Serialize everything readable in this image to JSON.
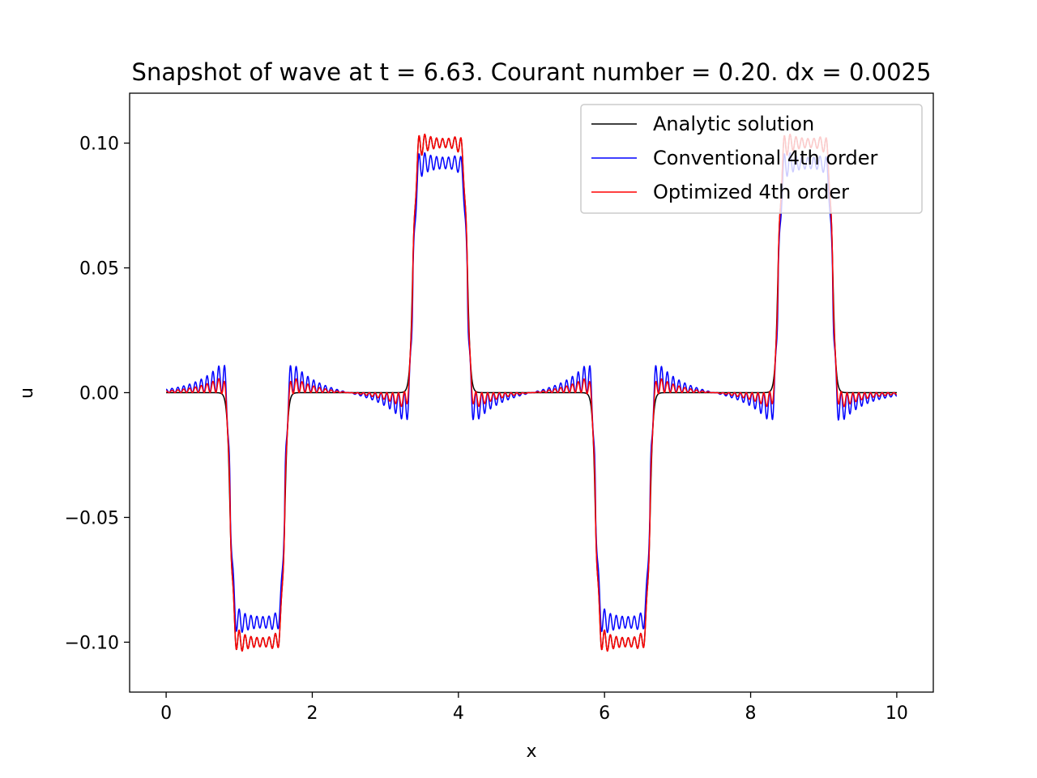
{
  "chart_data": {
    "type": "line",
    "title": "Snapshot of wave at t = 6.63. Courant number = 0.20. dx = 0.0025",
    "xlabel": "x",
    "ylabel": "u",
    "xlim": [
      -0.5,
      10.5
    ],
    "ylim": [
      -0.12,
      0.12
    ],
    "xticks": [
      0,
      2,
      4,
      6,
      8,
      10
    ],
    "xtick_labels": [
      "0",
      "2",
      "4",
      "6",
      "8",
      "10"
    ],
    "yticks": [
      0.1,
      0.05,
      0.0,
      -0.05,
      -0.1
    ],
    "ytick_labels": [
      "0.10",
      "0.05",
      "0.00",
      "−0.05",
      "−0.10"
    ],
    "grid": false,
    "legend_position": "top-right",
    "x_range": [
      0,
      10
    ],
    "pulse_amplitude": 0.1,
    "pulses": [
      {
        "x_start": 0.88,
        "x_end": 1.62,
        "sign": -1
      },
      {
        "x_start": 3.38,
        "x_end": 4.12,
        "sign": 1
      },
      {
        "x_start": 5.88,
        "x_end": 6.62,
        "sign": -1
      },
      {
        "x_start": 8.38,
        "x_end": 9.12,
        "sign": 1
      }
    ],
    "series": [
      {
        "name": "Analytic solution",
        "color": "#000000",
        "plateau": 0.1,
        "overshoot": 0.008,
        "leading_ripple_amplitude": 0.0,
        "ripple_wavelength": 0.08
      },
      {
        "name": "Conventional 4th order",
        "color": "#0000ff",
        "plateau": 0.092,
        "overshoot": 0.008,
        "leading_ripple_amplitude": 0.017,
        "ripple_wavelength": 0.08
      },
      {
        "name": "Optimized 4th order",
        "color": "#ff0000",
        "plateau": 0.1,
        "overshoot": 0.008,
        "leading_ripple_amplitude": 0.009,
        "ripple_wavelength": 0.08
      }
    ]
  }
}
